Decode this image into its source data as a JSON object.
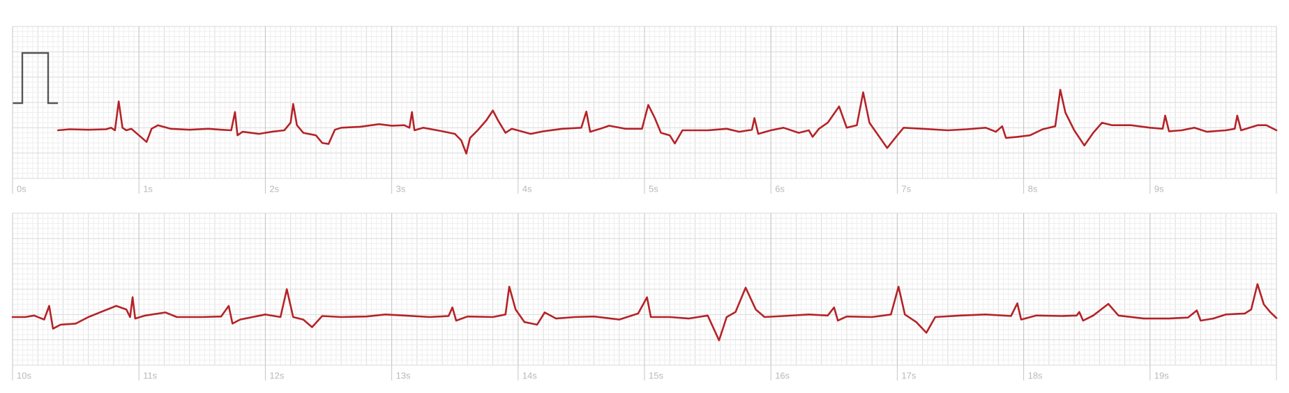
{
  "chart_data": [
    {
      "type": "line",
      "xlim": [
        0,
        10
      ],
      "ylim": [
        0,
        3
      ],
      "color": "#b52227",
      "grid": true,
      "xticks": [
        {
          "value": 0,
          "label": "0s"
        },
        {
          "value": 1,
          "label": "1s"
        },
        {
          "value": 2,
          "label": "2s"
        },
        {
          "value": 3,
          "label": "3s"
        },
        {
          "value": 4,
          "label": "4s"
        },
        {
          "value": 5,
          "label": "5s"
        },
        {
          "value": 6,
          "label": "6s"
        },
        {
          "value": 7,
          "label": "7s"
        },
        {
          "value": 8,
          "label": "8s"
        },
        {
          "value": 9,
          "label": "9s"
        }
      ],
      "x": [
        0.36,
        0.45,
        0.6,
        0.74,
        0.78,
        0.81,
        0.84,
        0.87,
        0.9,
        0.94,
        1.0,
        1.06,
        1.1,
        1.15,
        1.25,
        1.4,
        1.55,
        1.65,
        1.73,
        1.76,
        1.78,
        1.82,
        1.95,
        2.05,
        2.15,
        2.2,
        2.22,
        2.25,
        2.3,
        2.4,
        2.45,
        2.5,
        2.55,
        2.6,
        2.75,
        2.9,
        3.0,
        3.1,
        3.14,
        3.16,
        3.18,
        3.25,
        3.4,
        3.5,
        3.55,
        3.59,
        3.62,
        3.68,
        3.75,
        3.8,
        3.84,
        3.9,
        3.95,
        4.1,
        4.2,
        4.35,
        4.5,
        4.54,
        4.57,
        4.65,
        4.72,
        4.85,
        4.98,
        5.03,
        5.08,
        5.13,
        5.2,
        5.24,
        5.3,
        5.5,
        5.65,
        5.75,
        5.85,
        5.87,
        5.9,
        6.0,
        6.1,
        6.22,
        6.3,
        6.33,
        6.38,
        6.45,
        6.54,
        6.6,
        6.68,
        6.73,
        6.78,
        6.85,
        6.92,
        7.0,
        7.05,
        7.2,
        7.4,
        7.55,
        7.7,
        7.78,
        7.83,
        7.86,
        7.95,
        8.05,
        8.15,
        8.25,
        8.29,
        8.33,
        8.4,
        8.48,
        8.55,
        8.62,
        8.7,
        8.85,
        9.0,
        9.1,
        9.12,
        9.15,
        9.25,
        9.35,
        9.45,
        9.6,
        9.67,
        9.69,
        9.72,
        9.85,
        9.92,
        10.0
      ],
      "values": [
        0.95,
        0.97,
        0.96,
        0.97,
        1.0,
        0.95,
        1.52,
        1.0,
        0.95,
        0.98,
        0.85,
        0.72,
        0.98,
        1.05,
        0.98,
        0.96,
        0.98,
        0.96,
        0.95,
        1.31,
        0.85,
        0.92,
        0.88,
        0.92,
        0.95,
        1.1,
        1.47,
        1.05,
        0.9,
        0.85,
        0.7,
        0.68,
        0.96,
        1.0,
        1.02,
        1.07,
        1.04,
        1.05,
        1.0,
        1.31,
        0.95,
        1.0,
        0.93,
        0.88,
        0.75,
        0.49,
        0.8,
        0.95,
        1.15,
        1.34,
        1.15,
        0.9,
        0.98,
        0.88,
        0.93,
        0.98,
        1.0,
        1.32,
        0.92,
        0.98,
        1.04,
        0.98,
        0.98,
        1.45,
        1.2,
        0.9,
        0.85,
        0.69,
        0.95,
        0.95,
        0.98,
        0.92,
        0.96,
        1.19,
        0.88,
        0.95,
        1.0,
        0.9,
        0.95,
        0.82,
        0.98,
        1.1,
        1.42,
        1.0,
        1.05,
        1.7,
        1.1,
        0.85,
        0.6,
        0.85,
        1.0,
        0.98,
        0.95,
        0.97,
        1.0,
        0.92,
        1.03,
        0.8,
        0.82,
        0.85,
        0.97,
        1.03,
        1.75,
        1.3,
        0.95,
        0.65,
        0.9,
        1.1,
        1.05,
        1.05,
        1.0,
        0.98,
        1.24,
        0.93,
        0.95,
        1.0,
        0.92,
        0.95,
        0.98,
        1.24,
        0.95,
        1.05,
        1.05,
        0.95
      ]
    },
    {
      "type": "line",
      "xlim": [
        10,
        20
      ],
      "ylim": [
        0,
        3
      ],
      "color": "#b52227",
      "grid": true,
      "xticks": [
        {
          "value": 10,
          "label": "10s"
        },
        {
          "value": 11,
          "label": "11s"
        },
        {
          "value": 12,
          "label": "12s"
        },
        {
          "value": 13,
          "label": "13s"
        },
        {
          "value": 14,
          "label": "14s"
        },
        {
          "value": 15,
          "label": "15s"
        },
        {
          "value": 16,
          "label": "16s"
        },
        {
          "value": 17,
          "label": "17s"
        },
        {
          "value": 18,
          "label": "18s"
        },
        {
          "value": 19,
          "label": "19s"
        }
      ],
      "x": [
        10.0,
        10.1,
        10.17,
        10.25,
        10.29,
        10.32,
        10.38,
        10.5,
        10.6,
        10.7,
        10.82,
        10.9,
        10.93,
        10.95,
        10.97,
        11.05,
        11.21,
        11.3,
        11.5,
        11.65,
        11.71,
        11.74,
        11.8,
        12.0,
        12.12,
        12.17,
        12.22,
        12.3,
        12.37,
        12.45,
        12.6,
        12.8,
        12.95,
        13.1,
        13.3,
        13.45,
        13.48,
        13.51,
        13.6,
        13.8,
        13.9,
        13.93,
        13.98,
        14.05,
        14.15,
        14.21,
        14.3,
        14.45,
        14.6,
        14.8,
        14.95,
        15.02,
        15.05,
        15.2,
        15.35,
        15.5,
        15.59,
        15.65,
        15.72,
        15.8,
        15.88,
        15.95,
        16.1,
        16.3,
        16.45,
        16.5,
        16.53,
        16.6,
        16.8,
        16.95,
        17.01,
        17.06,
        17.15,
        17.23,
        17.3,
        17.5,
        17.7,
        17.9,
        17.95,
        17.98,
        18.1,
        18.3,
        18.42,
        18.44,
        18.47,
        18.55,
        18.67,
        18.75,
        18.95,
        19.15,
        19.3,
        19.37,
        19.4,
        19.5,
        19.6,
        19.75,
        19.8,
        19.85,
        19.9,
        19.95,
        20.0
      ],
      "values": [
        0.95,
        0.95,
        0.98,
        0.9,
        1.17,
        0.72,
        0.8,
        0.82,
        0.95,
        1.05,
        1.17,
        1.1,
        0.95,
        1.34,
        0.92,
        0.98,
        1.04,
        0.95,
        0.95,
        0.96,
        1.17,
        0.82,
        0.9,
        1.0,
        0.95,
        1.5,
        0.95,
        0.9,
        0.75,
        0.97,
        0.95,
        0.96,
        1.0,
        0.98,
        0.95,
        0.97,
        1.14,
        0.88,
        0.96,
        0.95,
        1.0,
        1.55,
        1.1,
        0.85,
        0.8,
        1.04,
        0.92,
        0.95,
        0.96,
        0.9,
        1.02,
        1.34,
        0.95,
        0.95,
        0.92,
        0.98,
        0.49,
        0.95,
        1.05,
        1.53,
        1.1,
        0.95,
        0.97,
        1.0,
        0.98,
        1.14,
        0.88,
        0.96,
        0.95,
        1.0,
        1.55,
        1.0,
        0.85,
        0.64,
        0.95,
        0.98,
        1.0,
        0.97,
        1.22,
        0.9,
        0.98,
        0.97,
        0.98,
        1.05,
        0.88,
        0.98,
        1.21,
        0.98,
        0.92,
        0.92,
        0.94,
        1.08,
        0.88,
        0.92,
        1.0,
        1.02,
        1.1,
        1.6,
        1.2,
        1.05,
        0.93
      ]
    }
  ]
}
